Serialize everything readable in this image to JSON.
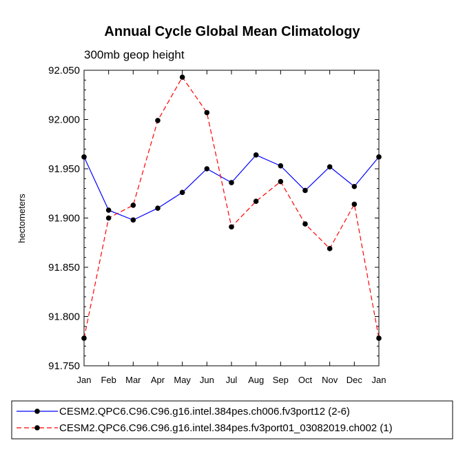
{
  "chart_data": {
    "type": "line",
    "title": "Annual Cycle Global Mean Climatology",
    "subtitle": "300mb geop height",
    "xlabel": "",
    "ylabel": "hectometers",
    "categories": [
      "Jan",
      "Feb",
      "Mar",
      "Apr",
      "May",
      "Jun",
      "Jul",
      "Aug",
      "Sep",
      "Oct",
      "Nov",
      "Dec",
      "Jan"
    ],
    "ylim": [
      91.75,
      92.05
    ],
    "yticks": [
      "91.750",
      "91.800",
      "91.850",
      "91.900",
      "91.950",
      "92.000",
      "92.050"
    ],
    "series": [
      {
        "name": "CESM2.QPC6.C96.C96.g16.intel.384pes.ch006.fv3port12 (2-6)",
        "color": "#0000ff",
        "dash": "solid",
        "values": [
          91.962,
          91.908,
          91.898,
          91.91,
          91.926,
          91.95,
          91.936,
          91.964,
          91.953,
          91.928,
          91.952,
          91.932,
          91.962
        ]
      },
      {
        "name": "CESM2.QPC6.C96.C96.g16.intel.384pes.fv3port01_03082019.ch002 (1)",
        "color": "#ff0000",
        "dash": "dashed",
        "values": [
          91.778,
          91.9,
          91.913,
          91.999,
          92.043,
          92.007,
          91.891,
          91.917,
          91.937,
          91.894,
          91.869,
          91.914,
          91.778
        ]
      }
    ]
  }
}
